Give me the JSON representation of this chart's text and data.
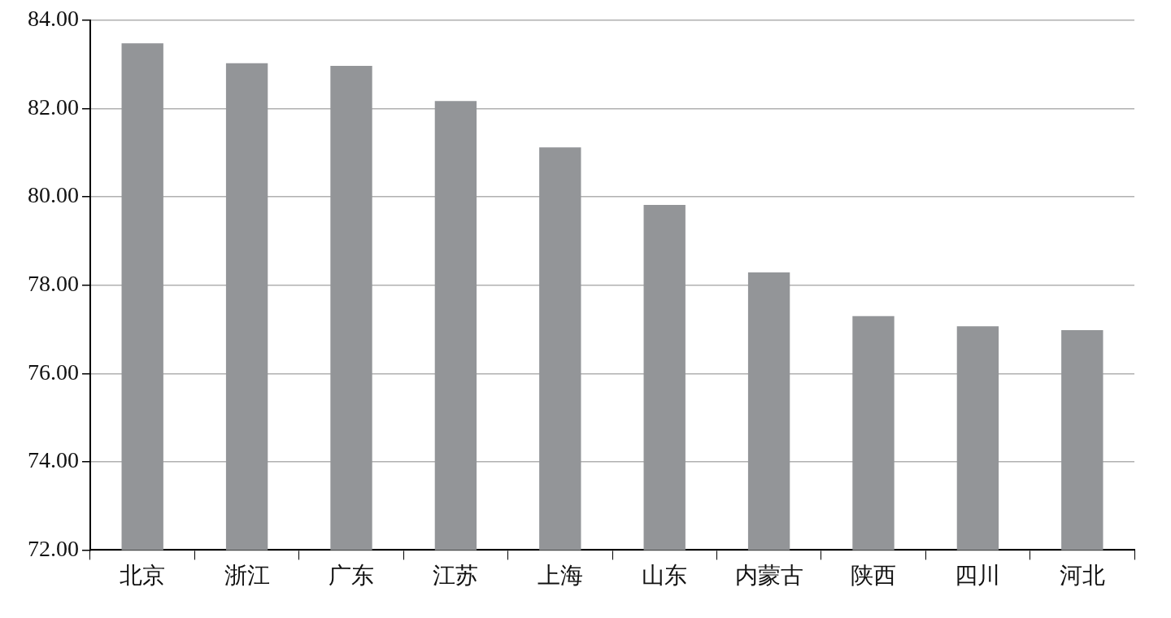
{
  "chart_data": {
    "type": "bar",
    "categories": [
      "北京",
      "浙江",
      "广东",
      "江苏",
      "上海",
      "山东",
      "内蒙古",
      "陕西",
      "四川",
      "河北"
    ],
    "values": [
      83.48,
      83.03,
      82.97,
      82.17,
      81.12,
      79.82,
      78.29,
      77.3,
      77.07,
      76.98
    ],
    "color": "#939598",
    "ylim": [
      72,
      84
    ],
    "yticks": [
      {
        "value": 72,
        "label": "72.00"
      },
      {
        "value": 74,
        "label": "74.00"
      },
      {
        "value": 76,
        "label": "76.00"
      },
      {
        "value": 78,
        "label": "78.00"
      },
      {
        "value": 80,
        "label": "80.00"
      },
      {
        "value": 82,
        "label": "82.00"
      },
      {
        "value": 84,
        "label": "84.00"
      }
    ],
    "grid": "y",
    "legend": false
  }
}
